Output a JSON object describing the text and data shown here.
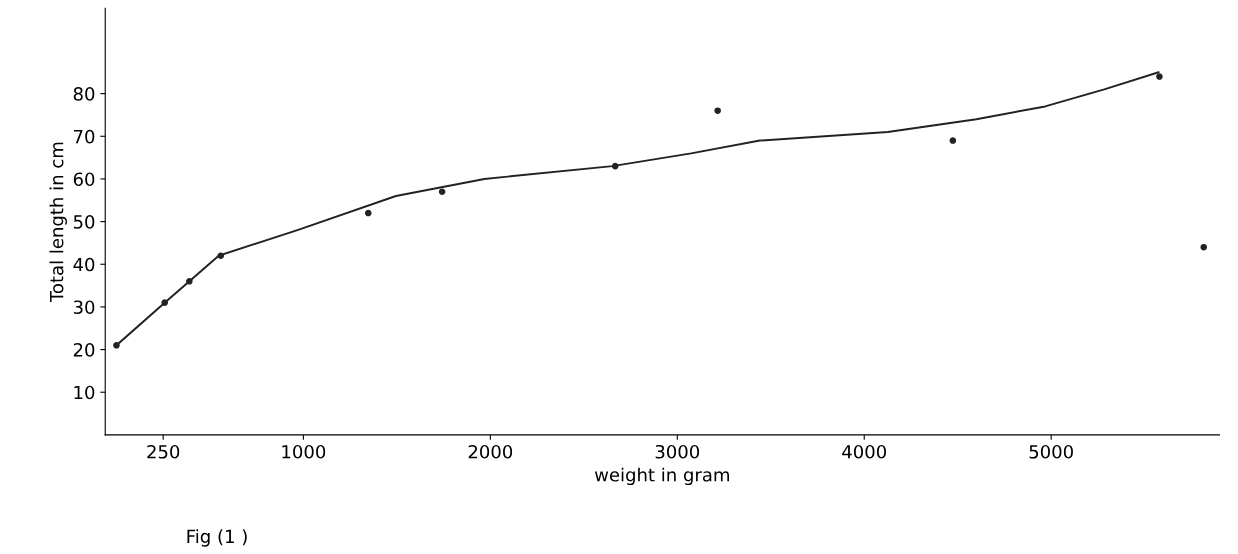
{
  "chart_data": {
    "type": "scatter",
    "xlabel": "weight in gram",
    "ylabel": "Total length in cm",
    "annotations": [
      "Fig (1 )"
    ],
    "xlim": [
      -60,
      5900
    ],
    "ylim": [
      0,
      100
    ],
    "xticks": [
      250,
      1000,
      2000,
      3000,
      4000,
      5000
    ],
    "yticks": [
      10,
      20,
      30,
      40,
      50,
      60,
      70,
      80
    ],
    "grid": false,
    "legend": false,
    "series": [
      {
        "color": "#222222",
        "marker": "circle",
        "x": [
          0,
          258,
          390,
          558,
          1347,
          1742,
          2668,
          3216,
          4474,
          5579,
          5816
        ],
        "values": [
          21,
          31,
          36,
          42,
          52,
          57,
          63,
          76,
          69,
          84,
          44
        ]
      },
      {
        "type": "line",
        "color": "#222222",
        "line_style": "solid",
        "x": [
          0,
          258,
          547,
          968,
          1495,
          1968,
          2653,
          3074,
          3442,
          4126,
          4600,
          4968,
          5284,
          5574
        ],
        "values": [
          21,
          31,
          42,
          48,
          56,
          60,
          63,
          66,
          69,
          71,
          74,
          77,
          81,
          85
        ]
      }
    ]
  }
}
